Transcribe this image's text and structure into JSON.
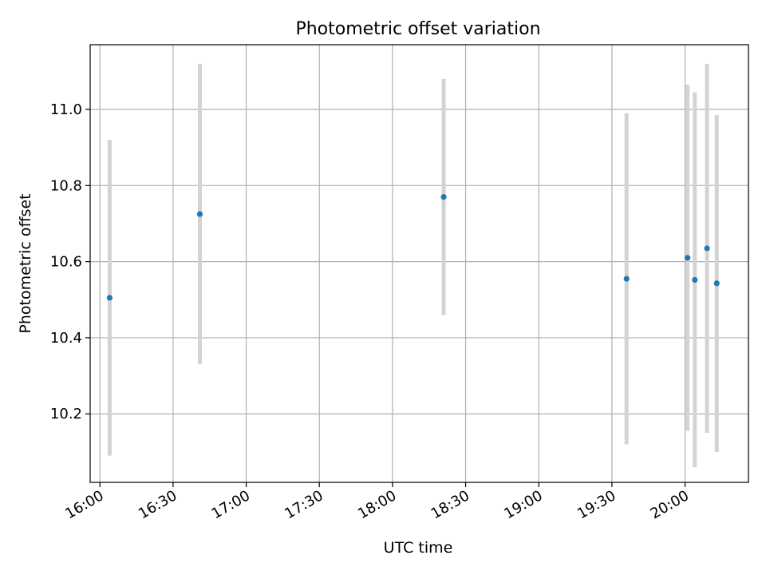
{
  "chart_data": {
    "type": "scatter",
    "title": "Photometric offset variation",
    "xlabel": "UTC time",
    "ylabel": "Photometric offset",
    "x_unit": "UTC",
    "xlim": [
      "15:56",
      "20:26"
    ],
    "ylim": [
      10.02,
      11.17
    ],
    "grid": true,
    "x_ticks": [
      "16:00",
      "16:30",
      "17:00",
      "17:30",
      "18:00",
      "18:30",
      "19:00",
      "19:30",
      "20:00"
    ],
    "y_ticks": [
      "10.2",
      "10.4",
      "10.6",
      "10.8",
      "11.0"
    ],
    "colors": {
      "point": "#1f77b4",
      "errorbar": "#d3d3d3",
      "grid": "#b0b0b0"
    },
    "points": [
      {
        "x": "16:04",
        "y": 10.505,
        "y_low": 10.09,
        "y_high": 10.92
      },
      {
        "x": "16:41",
        "y": 10.725,
        "y_low": 10.33,
        "y_high": 11.12
      },
      {
        "x": "18:21",
        "y": 10.77,
        "y_low": 10.46,
        "y_high": 11.08
      },
      {
        "x": "19:36",
        "y": 10.555,
        "y_low": 10.12,
        "y_high": 10.99
      },
      {
        "x": "20:01",
        "y": 10.61,
        "y_low": 10.155,
        "y_high": 11.065
      },
      {
        "x": "20:04",
        "y": 10.552,
        "y_low": 10.06,
        "y_high": 11.045
      },
      {
        "x": "20:09",
        "y": 10.635,
        "y_low": 10.15,
        "y_high": 11.12
      },
      {
        "x": "20:13",
        "y": 10.543,
        "y_low": 10.1,
        "y_high": 10.985
      }
    ]
  }
}
